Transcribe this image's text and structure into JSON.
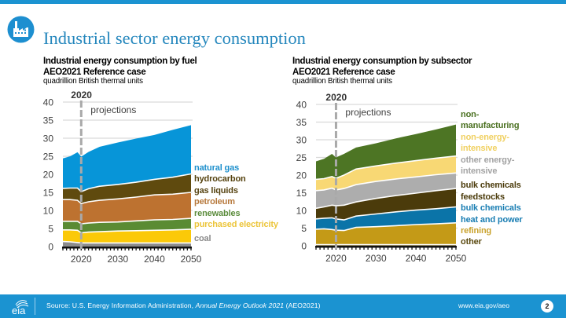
{
  "header": {
    "title": "Industrial sector energy consumption",
    "icon": "factory-icon",
    "accent_color": "#1b93d1"
  },
  "footer": {
    "logo": "eia-logo",
    "source_prefix": "Source: U.S. Energy Information Administration, ",
    "source_italic": "Annual Energy Outlook 2021",
    "source_suffix": " (AEO2021)",
    "url": "www.eia.gov/aeo",
    "page_number": "2"
  },
  "chart_data": [
    {
      "type": "area",
      "stacked": true,
      "title": "Industrial energy consumption by fuel",
      "subtitle": "AEO2021 Reference case",
      "ylabel": "quadrillion British thermal units",
      "xlabel": "",
      "x": [
        2015,
        2017,
        2019,
        2020,
        2022,
        2025,
        2030,
        2035,
        2040,
        2045,
        2050
      ],
      "xlim": [
        2015,
        2050
      ],
      "ylim": [
        0,
        40
      ],
      "yticks": [
        "0",
        "5",
        "10",
        "15",
        "20",
        "25",
        "30",
        "35",
        "40"
      ],
      "xticks": [
        "2020",
        "2030",
        "2040",
        "2050"
      ],
      "grid": true,
      "divider_year": 2020,
      "annotations": {
        "divider_label": "2020",
        "projections_label": "projections"
      },
      "legend_position": "right",
      "series": [
        {
          "name": "coal",
          "label_lines": [
            "coal"
          ],
          "color": "#8c8c8c",
          "label_color": "#8a8a8a",
          "values": [
            1.4,
            1.3,
            1.1,
            1.0,
            1.0,
            1.0,
            1.0,
            1.0,
            1.0,
            1.0,
            1.0
          ]
        },
        {
          "name": "purchased electricity",
          "label_lines": [
            "purchased electricity"
          ],
          "color": "#fbc908",
          "label_color": "#ecc53a",
          "values": [
            3.2,
            3.3,
            3.4,
            2.8,
            3.0,
            3.1,
            3.3,
            3.4,
            3.5,
            3.6,
            3.8
          ]
        },
        {
          "name": "renewables",
          "label_lines": [
            "renewables"
          ],
          "color": "#5a8b33",
          "label_color": "#5b8c3c",
          "values": [
            2.4,
            2.4,
            2.5,
            2.5,
            2.5,
            2.6,
            2.5,
            2.7,
            2.9,
            2.9,
            3.0
          ]
        },
        {
          "name": "petroleum",
          "label_lines": [
            "petroleum"
          ],
          "color": "#bd7230",
          "label_color": "#b7793c",
          "values": [
            6.0,
            6.0,
            5.8,
            5.6,
            5.9,
            6.1,
            6.4,
            6.6,
            6.9,
            7.0,
            7.2
          ]
        },
        {
          "name": "hydrocarbon gas liquids",
          "label_lines": [
            "hydrocarbon",
            "gas liquids"
          ],
          "color": "#5f4a0e",
          "label_color": "#55420f",
          "values": [
            3.1,
            3.2,
            3.4,
            3.3,
            3.6,
            3.9,
            4.0,
            4.1,
            4.3,
            4.7,
            5.1
          ]
        },
        {
          "name": "natural gas",
          "label_lines": [
            "natural gas"
          ],
          "color": "#0795d8",
          "label_color": "#1c8fcc",
          "values": [
            8.3,
            8.8,
            9.9,
            9.7,
            10.2,
            10.9,
            11.6,
            12.1,
            12.3,
            13.1,
            13.5
          ]
        }
      ]
    },
    {
      "type": "area",
      "stacked": true,
      "title": "Industrial energy consumption by subsector",
      "subtitle": "AEO2021 Reference case",
      "ylabel": "quadrillion British thermal units",
      "xlabel": "",
      "x": [
        2015,
        2017,
        2019,
        2020,
        2022,
        2025,
        2030,
        2035,
        2040,
        2045,
        2050
      ],
      "xlim": [
        2015,
        2050
      ],
      "ylim": [
        0,
        40
      ],
      "yticks": [
        "0",
        "5",
        "10",
        "15",
        "20",
        "25",
        "30",
        "35",
        "40"
      ],
      "xticks": [
        "2020",
        "2030",
        "2040",
        "2050"
      ],
      "grid": true,
      "divider_year": 2020,
      "annotations": {
        "divider_label": "2020",
        "projections_label": "projections"
      },
      "legend_position": "right",
      "series": [
        {
          "name": "other",
          "label_lines": [
            "other"
          ],
          "color": "#5b4a10",
          "label_color": "#5b4a10",
          "values": [
            0.3,
            0.3,
            0.3,
            0.3,
            0.3,
            0.3,
            0.3,
            0.3,
            0.3,
            0.3,
            0.3
          ]
        },
        {
          "name": "refining",
          "label_lines": [
            "refining"
          ],
          "color": "#c49a17",
          "label_color": "#c9a22c",
          "values": [
            4.4,
            4.5,
            4.3,
            4.1,
            4.0,
            4.9,
            5.1,
            5.4,
            5.7,
            5.9,
            6.2
          ]
        },
        {
          "name": "bulk chemicals heat and power",
          "label_lines": [
            "bulk chemicals",
            "heat and power"
          ],
          "color": "#0b74a8",
          "label_color": "#1a7eb3",
          "values": [
            2.9,
            3.0,
            3.3,
            3.2,
            3.0,
            3.2,
            3.6,
            3.9,
            4.1,
            4.3,
            4.5
          ]
        },
        {
          "name": "bulk chemicals feedstocks",
          "label_lines": [
            "bulk chemicals",
            "feedstocks"
          ],
          "color": "#4b3b0b",
          "label_color": "#4b3b0b",
          "values": [
            3.0,
            3.2,
            3.6,
            3.7,
            4.2,
            4.0,
            4.4,
            4.6,
            4.8,
            5.1,
            5.2
          ]
        },
        {
          "name": "other energy-intensive",
          "label_lines": [
            "other energy-",
            "intensive"
          ],
          "color": "#adadad",
          "label_color": "#a3a3a3",
          "values": [
            5.0,
            4.8,
            4.8,
            4.5,
            4.7,
            4.9,
            4.8,
            4.7,
            4.6,
            4.5,
            4.4
          ]
        },
        {
          "name": "non-energy-intensive",
          "label_lines": [
            "non-energy-",
            "intensive"
          ],
          "color": "#f8d874",
          "label_color": "#f0d060",
          "values": [
            3.2,
            3.2,
            3.3,
            3.3,
            3.8,
            4.4,
            4.4,
            4.5,
            4.6,
            4.7,
            4.8
          ]
        },
        {
          "name": "non-manufacturing",
          "label_lines": [
            "non-",
            "manufacturing"
          ],
          "color": "#4d7524",
          "label_color": "#4a7020",
          "values": [
            5.1,
            5.6,
            6.4,
            5.9,
            6.0,
            6.1,
            6.4,
            7.0,
            7.5,
            8.1,
            8.9
          ]
        }
      ]
    }
  ]
}
